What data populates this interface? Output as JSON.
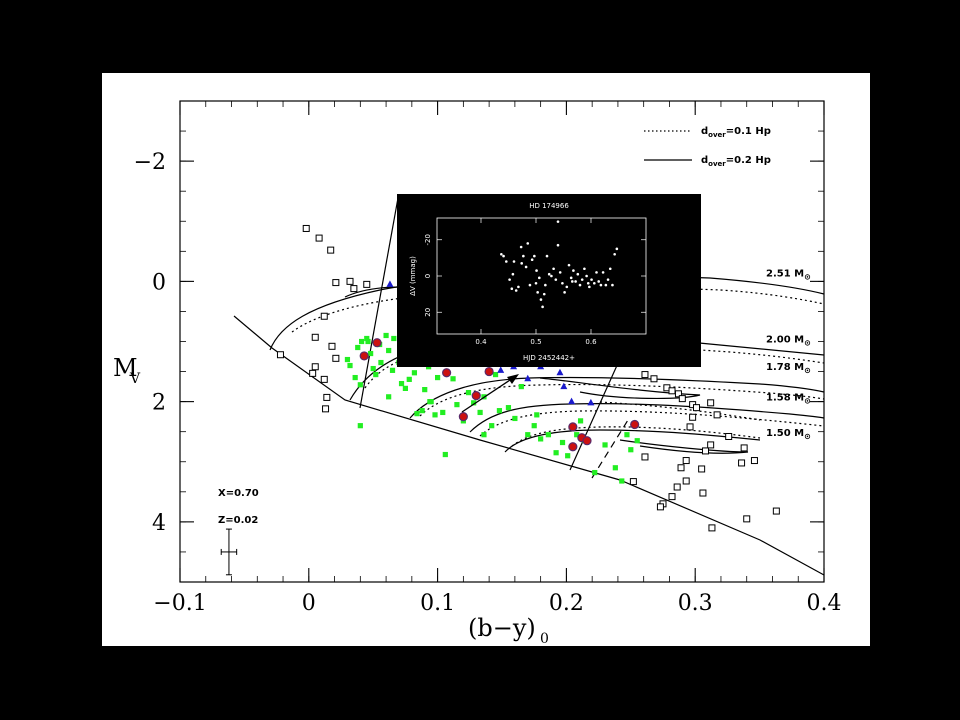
{
  "chart_data": [
    {
      "type": "scatter",
      "xlabel_main": "(b−y)",
      "xlabel_sub": "0",
      "ylabel_main": "M",
      "ylabel_sub": "V",
      "xlim": [
        -0.1,
        0.4
      ],
      "ylim": [
        5.0,
        -3.0
      ],
      "y_inverted": true,
      "x_ticks": [
        {
          "v": -0.1,
          "label": "−0.1"
        },
        {
          "v": 0.0,
          "label": "0"
        },
        {
          "v": 0.1,
          "label": "0.1"
        },
        {
          "v": 0.2,
          "label": "0.2"
        },
        {
          "v": 0.3,
          "label": "0.3"
        },
        {
          "v": 0.4,
          "label": "0.4"
        }
      ],
      "y_ticks": [
        {
          "v": -2,
          "label": "−2"
        },
        {
          "v": 0,
          "label": "0"
        },
        {
          "v": 2,
          "label": "2"
        },
        {
          "v": 4,
          "label": "4"
        }
      ],
      "legend": [
        {
          "style": "dotted",
          "label_main": "d",
          "label_sub": "over",
          "label_rest": "=0.1 Hp"
        },
        {
          "style": "solid",
          "label_main": "d",
          "label_sub": "over",
          "label_rest": "=0.2 Hp"
        }
      ],
      "annotations": [
        {
          "text": "X=0.70"
        },
        {
          "text": "Z=0.02"
        }
      ],
      "error_bar": {
        "x": -0.062,
        "y": 4.5,
        "xerr": 0.006,
        "yerr": 0.38
      },
      "mass_labels": [
        {
          "text": "2.51 M",
          "x": 0.355,
          "y": -0.08
        },
        {
          "text": "2.00 M",
          "x": 0.355,
          "y": 1.02
        },
        {
          "text": "1.78 M",
          "x": 0.355,
          "y": 1.47
        },
        {
          "text": "1.58 M",
          "x": 0.355,
          "y": 1.98
        },
        {
          "text": "1.50 M",
          "x": 0.355,
          "y": 2.57
        }
      ],
      "series": [
        {
          "name": "",
          "marker": "open-square",
          "color": "#000000",
          "points": [
            [
              -0.002,
              -0.88
            ],
            [
              0.008,
              -0.72
            ],
            [
              0.017,
              -0.52
            ],
            [
              0.021,
              0.02
            ],
            [
              0.032,
              0.0
            ],
            [
              0.003,
              1.53
            ],
            [
              0.005,
              1.42
            ],
            [
              0.012,
              1.63
            ],
            [
              0.014,
              1.93
            ],
            [
              0.013,
              2.12
            ],
            [
              0.012,
              0.58
            ],
            [
              0.018,
              1.08
            ],
            [
              0.021,
              1.28
            ],
            [
              -0.022,
              1.22
            ],
            [
              0.005,
              0.93
            ],
            [
              0.035,
              0.12
            ],
            [
              0.045,
              0.05
            ],
            [
              0.261,
              1.55
            ],
            [
              0.268,
              1.62
            ],
            [
              0.278,
              1.77
            ],
            [
              0.282,
              1.82
            ],
            [
              0.287,
              1.87
            ],
            [
              0.29,
              1.95
            ],
            [
              0.298,
              2.05
            ],
            [
              0.301,
              2.1
            ],
            [
              0.312,
              2.02
            ],
            [
              0.317,
              2.22
            ],
            [
              0.296,
              2.42
            ],
            [
              0.312,
              2.72
            ],
            [
              0.326,
              2.58
            ],
            [
              0.338,
              2.77
            ],
            [
              0.346,
              2.98
            ],
            [
              0.336,
              3.02
            ],
            [
              0.308,
              2.82
            ],
            [
              0.293,
              2.98
            ],
            [
              0.289,
              3.1
            ],
            [
              0.261,
              2.92
            ],
            [
              0.275,
              3.7
            ],
            [
              0.282,
              3.58
            ],
            [
              0.286,
              3.42
            ],
            [
              0.293,
              3.32
            ],
            [
              0.306,
              3.52
            ],
            [
              0.34,
              3.95
            ],
            [
              0.313,
              4.1
            ],
            [
              0.363,
              3.82
            ],
            [
              0.252,
              3.33
            ],
            [
              0.273,
              3.75
            ],
            [
              0.298,
              2.26
            ],
            [
              0.305,
              3.12
            ]
          ]
        },
        {
          "name": "",
          "marker": "filled-square",
          "color": "#22ee22",
          "points": [
            [
              0.03,
              1.3
            ],
            [
              0.032,
              1.4
            ],
            [
              0.036,
              1.6
            ],
            [
              0.04,
              1.72
            ],
            [
              0.04,
              2.4
            ],
            [
              0.038,
              1.1
            ],
            [
              0.041,
              1.0
            ],
            [
              0.045,
              0.95
            ],
            [
              0.048,
              1.2
            ],
            [
              0.052,
              1.55
            ],
            [
              0.055,
              1.05
            ],
            [
              0.056,
              1.35
            ],
            [
              0.06,
              0.9
            ],
            [
              0.062,
              1.15
            ],
            [
              0.065,
              1.48
            ],
            [
              0.066,
              0.95
            ],
            [
              0.07,
              1.35
            ],
            [
              0.072,
              1.7
            ],
            [
              0.075,
              1.78
            ],
            [
              0.08,
              1.2
            ],
            [
              0.082,
              1.52
            ],
            [
              0.084,
              2.2
            ],
            [
              0.09,
              1.8
            ],
            [
              0.093,
              1.42
            ],
            [
              0.095,
              2.0
            ],
            [
              0.098,
              2.22
            ],
            [
              0.1,
              1.6
            ],
            [
              0.104,
              2.18
            ],
            [
              0.106,
              2.88
            ],
            [
              0.112,
              1.62
            ],
            [
              0.115,
              2.05
            ],
            [
              0.12,
              2.32
            ],
            [
              0.124,
              1.85
            ],
            [
              0.128,
              2.02
            ],
            [
              0.133,
              2.18
            ],
            [
              0.136,
              1.92
            ],
            [
              0.142,
              2.4
            ],
            [
              0.145,
              1.55
            ],
            [
              0.148,
              2.15
            ],
            [
              0.155,
              2.1
            ],
            [
              0.16,
              2.28
            ],
            [
              0.165,
              1.75
            ],
            [
              0.17,
              2.55
            ],
            [
              0.175,
              2.4
            ],
            [
              0.177,
              2.22
            ],
            [
              0.18,
              2.62
            ],
            [
              0.186,
              2.55
            ],
            [
              0.192,
              2.85
            ],
            [
              0.197,
              2.68
            ],
            [
              0.201,
              2.9
            ],
            [
              0.205,
              2.42
            ],
            [
              0.208,
              2.55
            ],
            [
              0.211,
              2.32
            ],
            [
              0.214,
              2.64
            ],
            [
              0.222,
              3.18
            ],
            [
              0.23,
              2.72
            ],
            [
              0.238,
              3.1
            ],
            [
              0.243,
              3.32
            ],
            [
              0.247,
              2.55
            ],
            [
              0.25,
              2.8
            ],
            [
              0.255,
              2.65
            ],
            [
              0.136,
              2.55
            ],
            [
              0.094,
              2.0
            ],
            [
              0.046,
              1.0
            ],
            [
              0.078,
              1.63
            ],
            [
              0.062,
              1.92
            ],
            [
              0.05,
              1.45
            ],
            [
              0.088,
              2.15
            ]
          ]
        },
        {
          "name": "",
          "marker": "filled-triangle",
          "color": "#1a1acc",
          "points": [
            [
              0.063,
              0.05
            ],
            [
              0.133,
              1.32
            ],
            [
              0.149,
              1.48
            ],
            [
              0.159,
              1.42
            ],
            [
              0.18,
              1.42
            ],
            [
              0.195,
              1.52
            ],
            [
              0.198,
              1.75
            ],
            [
              0.204,
              2.0
            ],
            [
              0.219,
              2.02
            ],
            [
              0.17,
              1.62
            ]
          ]
        },
        {
          "name": "",
          "marker": "red-dot",
          "color": "#cc1111",
          "points": [
            [
              0.043,
              1.24
            ],
            [
              0.053,
              1.02
            ],
            [
              0.107,
              1.52
            ],
            [
              0.12,
              2.25
            ],
            [
              0.13,
              1.9
            ],
            [
              0.14,
              1.5
            ],
            [
              0.205,
              2.42
            ],
            [
              0.212,
              2.6
            ],
            [
              0.205,
              2.75
            ],
            [
              0.253,
              2.38
            ],
            [
              0.216,
              2.65
            ]
          ]
        }
      ]
    },
    {
      "type": "scatter",
      "title": "HD 174966",
      "xlabel": "HJD 2452442+",
      "ylabel": "ΔV (mmag)",
      "xlim": [
        0.32,
        0.7
      ],
      "ylim": [
        32,
        -32
      ],
      "x_ticks": [
        {
          "v": 0.4,
          "label": "0.4"
        },
        {
          "v": 0.5,
          "label": "0.5"
        },
        {
          "v": 0.6,
          "label": "0.6"
        }
      ],
      "y_ticks": [
        {
          "v": -20,
          "label": "-20"
        },
        {
          "v": 0,
          "label": "0"
        },
        {
          "v": 20,
          "label": "20"
        }
      ],
      "points": [
        [
          0.437,
          -12
        ],
        [
          0.441,
          -11
        ],
        [
          0.446,
          -8
        ],
        [
          0.452,
          2
        ],
        [
          0.456,
          7
        ],
        [
          0.46,
          -8
        ],
        [
          0.464,
          8
        ],
        [
          0.468,
          6
        ],
        [
          0.473,
          -16
        ],
        [
          0.477,
          -11
        ],
        [
          0.482,
          -5
        ],
        [
          0.485,
          -18
        ],
        [
          0.489,
          5
        ],
        [
          0.493,
          -9
        ],
        [
          0.497,
          -11
        ],
        [
          0.5,
          4
        ],
        [
          0.503,
          9
        ],
        [
          0.506,
          1
        ],
        [
          0.509,
          13
        ],
        [
          0.512,
          17
        ],
        [
          0.515,
          10
        ],
        [
          0.52,
          -11
        ],
        [
          0.524,
          -1
        ],
        [
          0.528,
          0
        ],
        [
          0.532,
          -4
        ],
        [
          0.536,
          2
        ],
        [
          0.54,
          -17
        ],
        [
          0.544,
          -2
        ],
        [
          0.548,
          4
        ],
        [
          0.552,
          9
        ],
        [
          0.556,
          6
        ],
        [
          0.56,
          -6
        ],
        [
          0.564,
          1
        ],
        [
          0.568,
          -3
        ],
        [
          0.572,
          3
        ],
        [
          0.576,
          -1
        ],
        [
          0.58,
          5
        ],
        [
          0.584,
          2
        ],
        [
          0.588,
          -4
        ],
        [
          0.592,
          0
        ],
        [
          0.597,
          6
        ],
        [
          0.601,
          2
        ],
        [
          0.606,
          4
        ],
        [
          0.61,
          -2
        ],
        [
          0.614,
          3
        ],
        [
          0.618,
          5
        ],
        [
          0.622,
          -2
        ],
        [
          0.627,
          5
        ],
        [
          0.631,
          2
        ],
        [
          0.635,
          -4
        ],
        [
          0.639,
          5
        ],
        [
          0.643,
          -12
        ],
        [
          0.647,
          -15
        ],
        [
          0.458,
          -1
        ],
        [
          0.474,
          -7
        ],
        [
          0.501,
          -3
        ],
        [
          0.517,
          5
        ],
        [
          0.566,
          3
        ],
        [
          0.595,
          4
        ],
        [
          0.54,
          -30
        ]
      ]
    }
  ]
}
